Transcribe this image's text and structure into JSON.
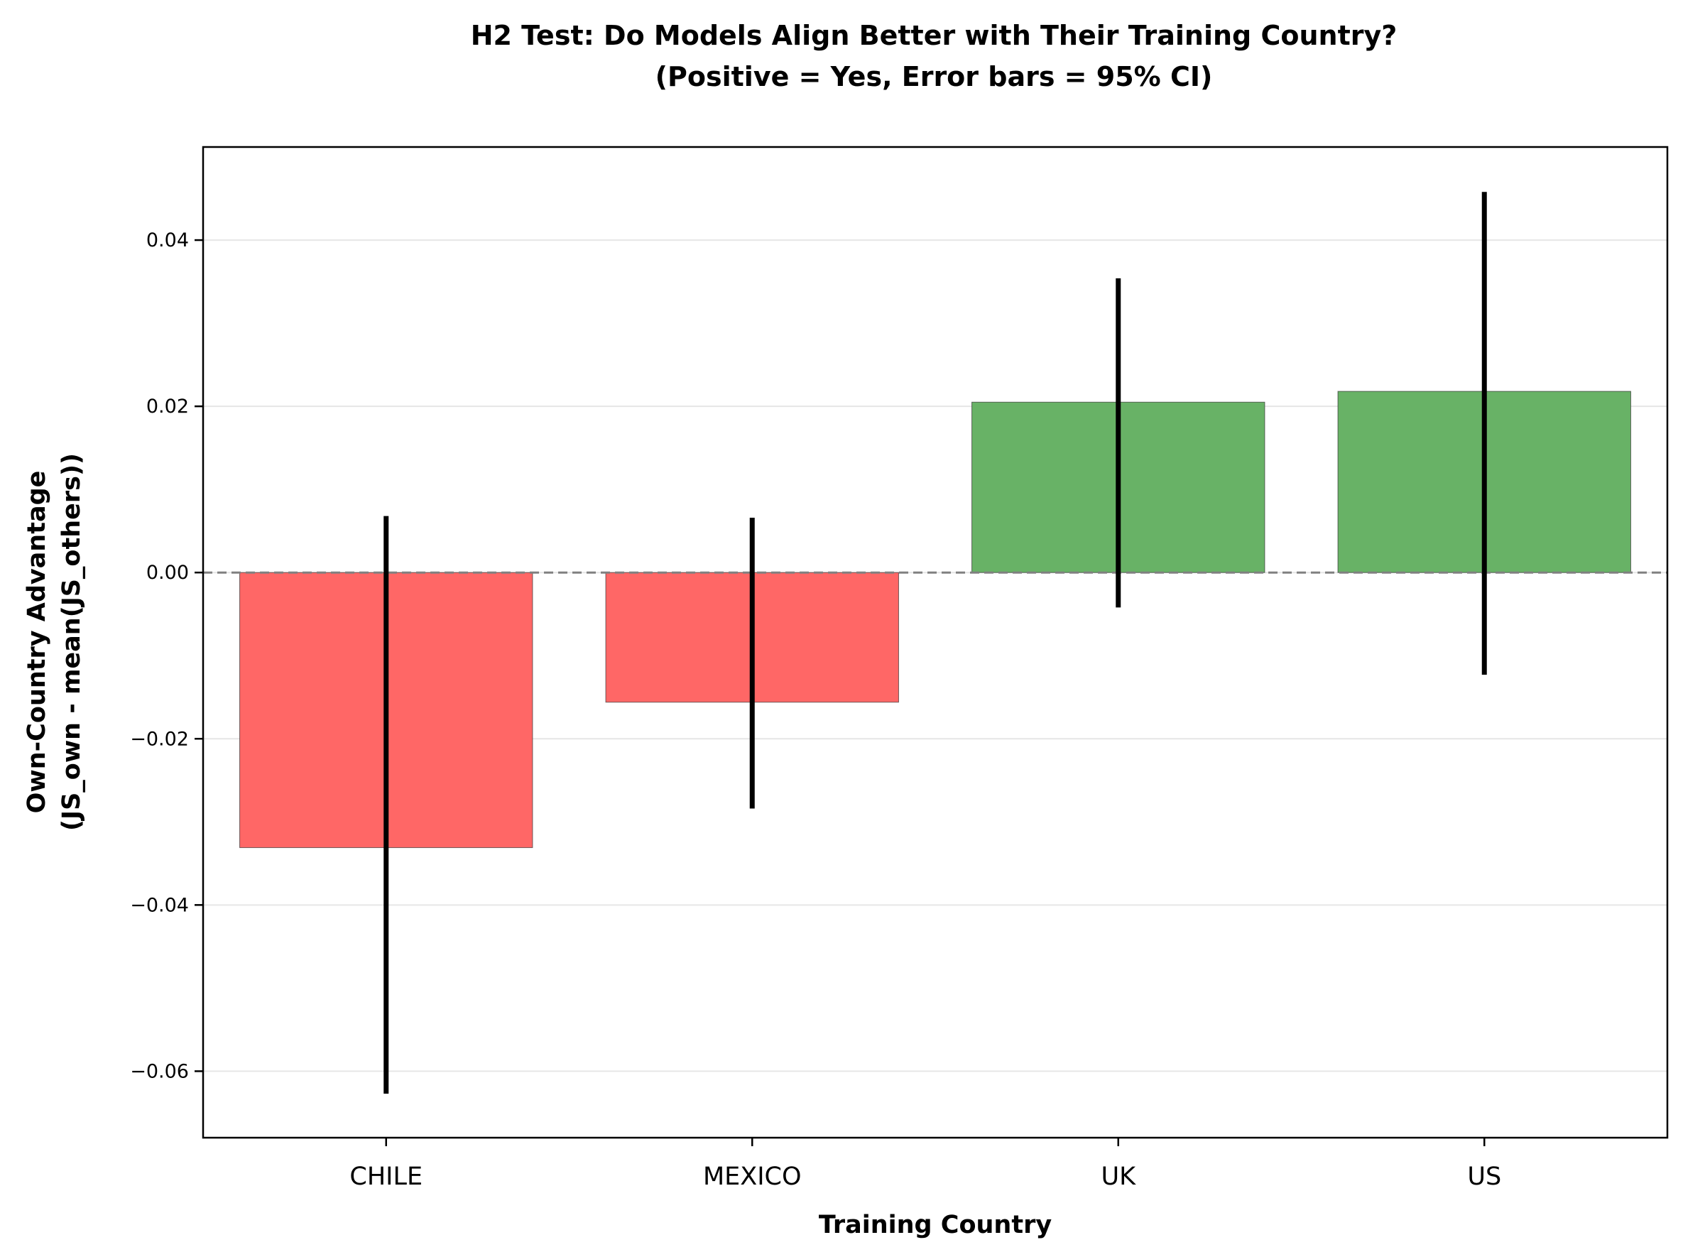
{
  "chart_data": {
    "type": "bar",
    "title": "H2 Test: Do Models Align Better with Their Training Country?",
    "subtitle": "(Positive = Yes, Error bars = 95% CI)",
    "xlabel": "Training Country",
    "ylabel_line1": "Own-Country Advantage",
    "ylabel_line2": "(JS_own - mean(JS_others))",
    "categories": [
      "CHILE",
      "MEXICO",
      "UK",
      "US"
    ],
    "values": [
      -0.0331,
      -0.0156,
      0.0205,
      0.0218
    ],
    "ci_low": [
      -0.0627,
      -0.0284,
      -0.0042,
      -0.0123
    ],
    "ci_high": [
      0.0068,
      0.0066,
      0.0354,
      0.0458
    ],
    "ylim": [
      -0.068,
      0.0512
    ],
    "yticks": [
      -0.06,
      -0.04,
      -0.02,
      0.0,
      0.02,
      0.04
    ],
    "ytick_labels": [
      "−0.06",
      "−0.04",
      "−0.02",
      "0.00",
      "0.02",
      "0.04"
    ],
    "grid": "horizontal",
    "reference_line": 0,
    "colors": {
      "positive": "#68b266",
      "negative": "#ff6766",
      "errorbar": "#000000",
      "grid": "#e6e6e6",
      "zero_line": "#808080"
    }
  }
}
